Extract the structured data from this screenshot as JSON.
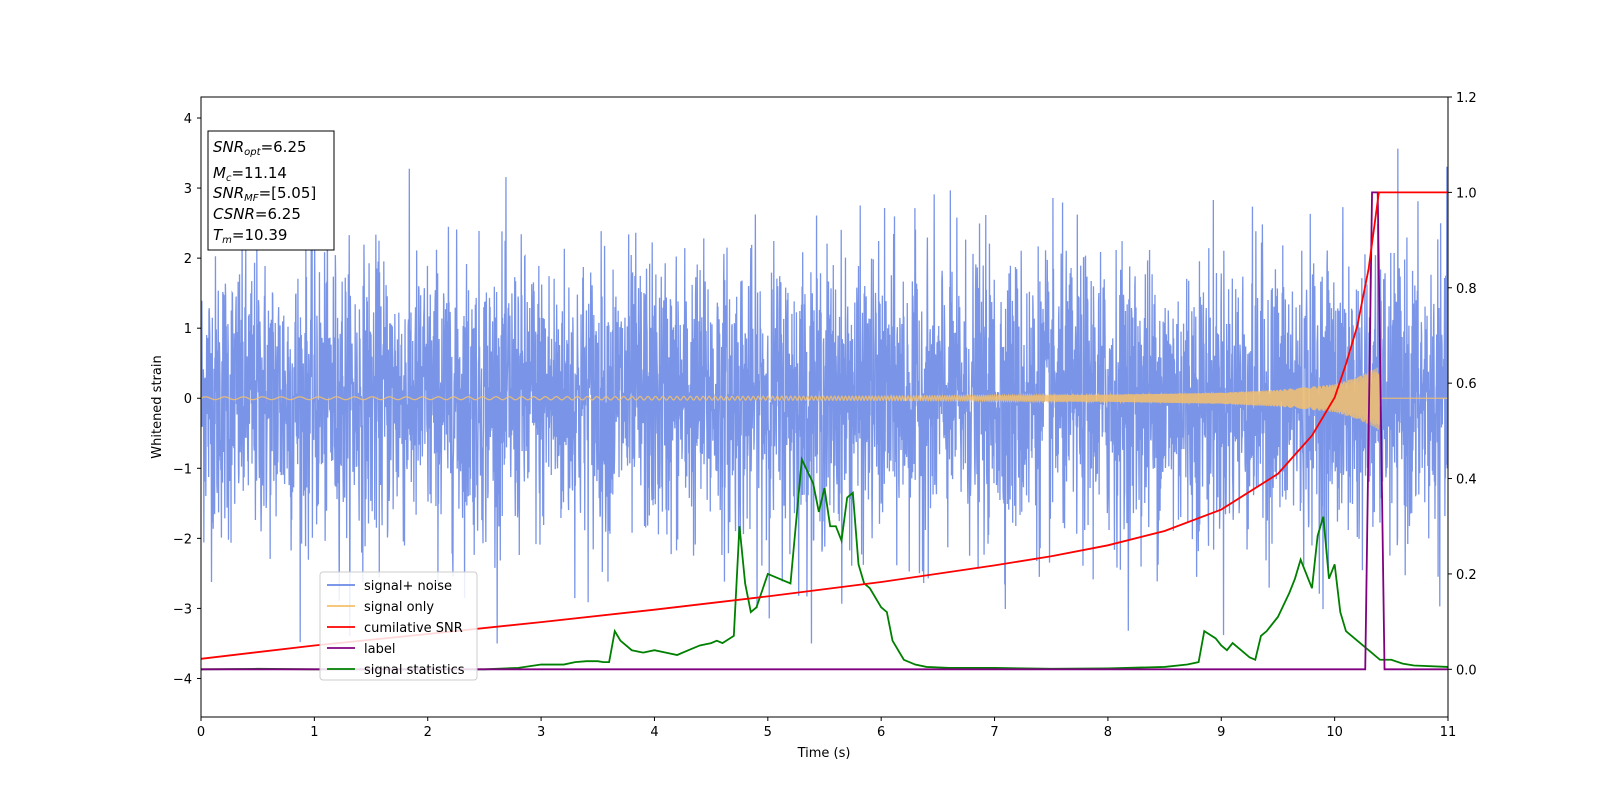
{
  "chart_data": {
    "type": "line",
    "xlabel": "Time (s)",
    "ylabel": "Whitened strain",
    "xlim": [
      0,
      11
    ],
    "ylim_left": [
      -4.55,
      4.3
    ],
    "ylim_right": [
      -0.1,
      1.2
    ],
    "x_ticks": [
      "0",
      "1",
      "2",
      "3",
      "4",
      "5",
      "6",
      "7",
      "8",
      "9",
      "10",
      "11"
    ],
    "left_ticks": [
      "−4",
      "−3",
      "−2",
      "−1",
      "0",
      "1",
      "2",
      "3",
      "4"
    ],
    "right_ticks": [
      "0.0",
      "0.2",
      "0.4",
      "0.6",
      "0.8",
      "1.0",
      "1.2"
    ],
    "grid": false,
    "legend_position": "lower-left",
    "annotation": {
      "snr_opt_label": "SNR",
      "snr_opt_sub": "opt",
      "snr_opt_value": "=6.25",
      "mc_label": "M",
      "mc_sub": "c",
      "mc_value": "=11.14",
      "snr_mf_label": "SNR",
      "snr_mf_sub": "MF",
      "snr_mf_value": "=[5.05]",
      "csnr_label": "CSNR",
      "csnr_value": "=6.25",
      "tm_label": "T",
      "tm_sub": "m",
      "tm_value": "=10.39"
    },
    "series": [
      {
        "name": "signal+ noise",
        "axis": "left",
        "color": "#6b8ae6",
        "description_stats": {
          "std": 1.0,
          "range": [
            -3.5,
            3.9
          ]
        }
      },
      {
        "name": "signal only",
        "axis": "left",
        "color": "#f5c06b",
        "envelope": {
          "x": [
            0,
            2,
            4,
            6,
            8,
            9,
            9.5,
            10,
            10.2,
            10.39,
            10.4,
            11
          ],
          "amp": [
            0.02,
            0.02,
            0.025,
            0.03,
            0.05,
            0.08,
            0.12,
            0.2,
            0.3,
            0.45,
            0,
            0
          ]
        }
      },
      {
        "name": "cumilative SNR",
        "axis": "right",
        "color": "#ff0000",
        "x": [
          0,
          1,
          2,
          3,
          4,
          5,
          6,
          7,
          7.5,
          8,
          8.5,
          9,
          9.5,
          9.8,
          10,
          10.1,
          10.2,
          10.3,
          10.39,
          10.4,
          11
        ],
        "y": [
          0.022,
          0.05,
          0.074,
          0.099,
          0.125,
          0.153,
          0.183,
          0.218,
          0.237,
          0.26,
          0.29,
          0.335,
          0.41,
          0.49,
          0.57,
          0.64,
          0.72,
          0.84,
          1.0,
          1.0,
          1.0
        ]
      },
      {
        "name": "label",
        "axis": "right",
        "color": "#800080",
        "x": [
          0,
          10.27,
          10.33,
          10.38,
          10.44,
          11
        ],
        "y": [
          0,
          0,
          1,
          1,
          0,
          0
        ]
      },
      {
        "name": "signal statistics",
        "axis": "right",
        "color": "#008000",
        "x": [
          0,
          0.5,
          1,
          1.5,
          2,
          2.5,
          2.8,
          3,
          3.2,
          3.3,
          3.4,
          3.5,
          3.55,
          3.6,
          3.65,
          3.7,
          3.8,
          3.9,
          4,
          4.1,
          4.2,
          4.3,
          4.4,
          4.5,
          4.55,
          4.6,
          4.7,
          4.75,
          4.8,
          4.85,
          4.9,
          5.0,
          5.1,
          5.2,
          5.3,
          5.4,
          5.45,
          5.5,
          5.55,
          5.6,
          5.65,
          5.7,
          5.75,
          5.8,
          5.85,
          5.9,
          6.0,
          6.05,
          6.1,
          6.2,
          6.3,
          6.4,
          6.6,
          7,
          7.5,
          8,
          8.5,
          8.7,
          8.8,
          8.85,
          8.95,
          9.0,
          9.05,
          9.1,
          9.2,
          9.25,
          9.3,
          9.35,
          9.4,
          9.5,
          9.6,
          9.65,
          9.7,
          9.8,
          9.85,
          9.9,
          9.95,
          10.0,
          10.05,
          10.1,
          10.2,
          10.3,
          10.4,
          10.5,
          10.6,
          10.7,
          11
        ],
        "y": [
          0.0,
          0.001,
          0.0,
          0.0,
          0.0,
          0.0,
          0.003,
          0.01,
          0.01,
          0.015,
          0.017,
          0.017,
          0.015,
          0.015,
          0.08,
          0.06,
          0.04,
          0.035,
          0.04,
          0.035,
          0.03,
          0.04,
          0.05,
          0.055,
          0.06,
          0.055,
          0.07,
          0.3,
          0.18,
          0.12,
          0.13,
          0.2,
          0.19,
          0.18,
          0.44,
          0.39,
          0.33,
          0.38,
          0.3,
          0.3,
          0.27,
          0.36,
          0.37,
          0.22,
          0.18,
          0.17,
          0.13,
          0.12,
          0.06,
          0.02,
          0.01,
          0.005,
          0.003,
          0.003,
          0.001,
          0.002,
          0.005,
          0.01,
          0.015,
          0.08,
          0.065,
          0.05,
          0.04,
          0.055,
          0.035,
          0.025,
          0.02,
          0.07,
          0.08,
          0.11,
          0.16,
          0.19,
          0.23,
          0.17,
          0.28,
          0.32,
          0.19,
          0.22,
          0.12,
          0.08,
          0.06,
          0.04,
          0.02,
          0.02,
          0.012,
          0.008,
          0.005
        ]
      }
    ],
    "legend": [
      "signal+ noise",
      "signal only",
      "cumilative SNR",
      "label",
      "signal statistics"
    ]
  }
}
